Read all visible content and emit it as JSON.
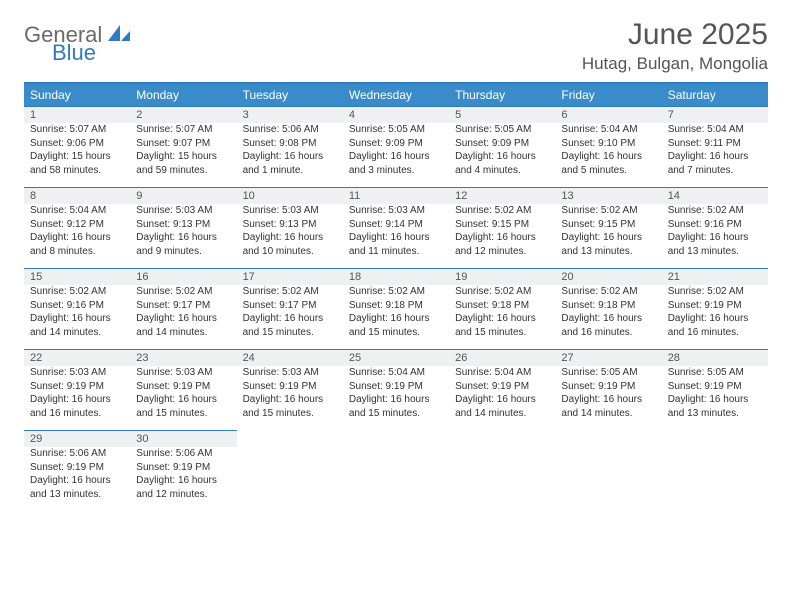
{
  "brand": {
    "word1": "General",
    "word2": "Blue"
  },
  "title": "June 2025",
  "location": "Hutag, Bulgan, Mongolia",
  "colors": {
    "accent": "#3a8bc9",
    "accent_dark": "#2f7bbf",
    "daynum_bg": "#eef0f2",
    "text": "#333333",
    "muted": "#555555"
  },
  "day_headers": [
    "Sunday",
    "Monday",
    "Tuesday",
    "Wednesday",
    "Thursday",
    "Friday",
    "Saturday"
  ],
  "weeks": [
    [
      {
        "n": "1",
        "sr": "Sunrise: 5:07 AM",
        "ss": "Sunset: 9:06 PM",
        "d1": "Daylight: 15 hours",
        "d2": "and 58 minutes."
      },
      {
        "n": "2",
        "sr": "Sunrise: 5:07 AM",
        "ss": "Sunset: 9:07 PM",
        "d1": "Daylight: 15 hours",
        "d2": "and 59 minutes."
      },
      {
        "n": "3",
        "sr": "Sunrise: 5:06 AM",
        "ss": "Sunset: 9:08 PM",
        "d1": "Daylight: 16 hours",
        "d2": "and 1 minute."
      },
      {
        "n": "4",
        "sr": "Sunrise: 5:05 AM",
        "ss": "Sunset: 9:09 PM",
        "d1": "Daylight: 16 hours",
        "d2": "and 3 minutes."
      },
      {
        "n": "5",
        "sr": "Sunrise: 5:05 AM",
        "ss": "Sunset: 9:09 PM",
        "d1": "Daylight: 16 hours",
        "d2": "and 4 minutes."
      },
      {
        "n": "6",
        "sr": "Sunrise: 5:04 AM",
        "ss": "Sunset: 9:10 PM",
        "d1": "Daylight: 16 hours",
        "d2": "and 5 minutes."
      },
      {
        "n": "7",
        "sr": "Sunrise: 5:04 AM",
        "ss": "Sunset: 9:11 PM",
        "d1": "Daylight: 16 hours",
        "d2": "and 7 minutes."
      }
    ],
    [
      {
        "n": "8",
        "sr": "Sunrise: 5:04 AM",
        "ss": "Sunset: 9:12 PM",
        "d1": "Daylight: 16 hours",
        "d2": "and 8 minutes."
      },
      {
        "n": "9",
        "sr": "Sunrise: 5:03 AM",
        "ss": "Sunset: 9:13 PM",
        "d1": "Daylight: 16 hours",
        "d2": "and 9 minutes."
      },
      {
        "n": "10",
        "sr": "Sunrise: 5:03 AM",
        "ss": "Sunset: 9:13 PM",
        "d1": "Daylight: 16 hours",
        "d2": "and 10 minutes."
      },
      {
        "n": "11",
        "sr": "Sunrise: 5:03 AM",
        "ss": "Sunset: 9:14 PM",
        "d1": "Daylight: 16 hours",
        "d2": "and 11 minutes."
      },
      {
        "n": "12",
        "sr": "Sunrise: 5:02 AM",
        "ss": "Sunset: 9:15 PM",
        "d1": "Daylight: 16 hours",
        "d2": "and 12 minutes."
      },
      {
        "n": "13",
        "sr": "Sunrise: 5:02 AM",
        "ss": "Sunset: 9:15 PM",
        "d1": "Daylight: 16 hours",
        "d2": "and 13 minutes."
      },
      {
        "n": "14",
        "sr": "Sunrise: 5:02 AM",
        "ss": "Sunset: 9:16 PM",
        "d1": "Daylight: 16 hours",
        "d2": "and 13 minutes."
      }
    ],
    [
      {
        "n": "15",
        "sr": "Sunrise: 5:02 AM",
        "ss": "Sunset: 9:16 PM",
        "d1": "Daylight: 16 hours",
        "d2": "and 14 minutes."
      },
      {
        "n": "16",
        "sr": "Sunrise: 5:02 AM",
        "ss": "Sunset: 9:17 PM",
        "d1": "Daylight: 16 hours",
        "d2": "and 14 minutes."
      },
      {
        "n": "17",
        "sr": "Sunrise: 5:02 AM",
        "ss": "Sunset: 9:17 PM",
        "d1": "Daylight: 16 hours",
        "d2": "and 15 minutes."
      },
      {
        "n": "18",
        "sr": "Sunrise: 5:02 AM",
        "ss": "Sunset: 9:18 PM",
        "d1": "Daylight: 16 hours",
        "d2": "and 15 minutes."
      },
      {
        "n": "19",
        "sr": "Sunrise: 5:02 AM",
        "ss": "Sunset: 9:18 PM",
        "d1": "Daylight: 16 hours",
        "d2": "and 15 minutes."
      },
      {
        "n": "20",
        "sr": "Sunrise: 5:02 AM",
        "ss": "Sunset: 9:18 PM",
        "d1": "Daylight: 16 hours",
        "d2": "and 16 minutes."
      },
      {
        "n": "21",
        "sr": "Sunrise: 5:02 AM",
        "ss": "Sunset: 9:19 PM",
        "d1": "Daylight: 16 hours",
        "d2": "and 16 minutes."
      }
    ],
    [
      {
        "n": "22",
        "sr": "Sunrise: 5:03 AM",
        "ss": "Sunset: 9:19 PM",
        "d1": "Daylight: 16 hours",
        "d2": "and 16 minutes."
      },
      {
        "n": "23",
        "sr": "Sunrise: 5:03 AM",
        "ss": "Sunset: 9:19 PM",
        "d1": "Daylight: 16 hours",
        "d2": "and 15 minutes."
      },
      {
        "n": "24",
        "sr": "Sunrise: 5:03 AM",
        "ss": "Sunset: 9:19 PM",
        "d1": "Daylight: 16 hours",
        "d2": "and 15 minutes."
      },
      {
        "n": "25",
        "sr": "Sunrise: 5:04 AM",
        "ss": "Sunset: 9:19 PM",
        "d1": "Daylight: 16 hours",
        "d2": "and 15 minutes."
      },
      {
        "n": "26",
        "sr": "Sunrise: 5:04 AM",
        "ss": "Sunset: 9:19 PM",
        "d1": "Daylight: 16 hours",
        "d2": "and 14 minutes."
      },
      {
        "n": "27",
        "sr": "Sunrise: 5:05 AM",
        "ss": "Sunset: 9:19 PM",
        "d1": "Daylight: 16 hours",
        "d2": "and 14 minutes."
      },
      {
        "n": "28",
        "sr": "Sunrise: 5:05 AM",
        "ss": "Sunset: 9:19 PM",
        "d1": "Daylight: 16 hours",
        "d2": "and 13 minutes."
      }
    ],
    [
      {
        "n": "29",
        "sr": "Sunrise: 5:06 AM",
        "ss": "Sunset: 9:19 PM",
        "d1": "Daylight: 16 hours",
        "d2": "and 13 minutes."
      },
      {
        "n": "30",
        "sr": "Sunrise: 5:06 AM",
        "ss": "Sunset: 9:19 PM",
        "d1": "Daylight: 16 hours",
        "d2": "and 12 minutes."
      },
      null,
      null,
      null,
      null,
      null
    ]
  ]
}
